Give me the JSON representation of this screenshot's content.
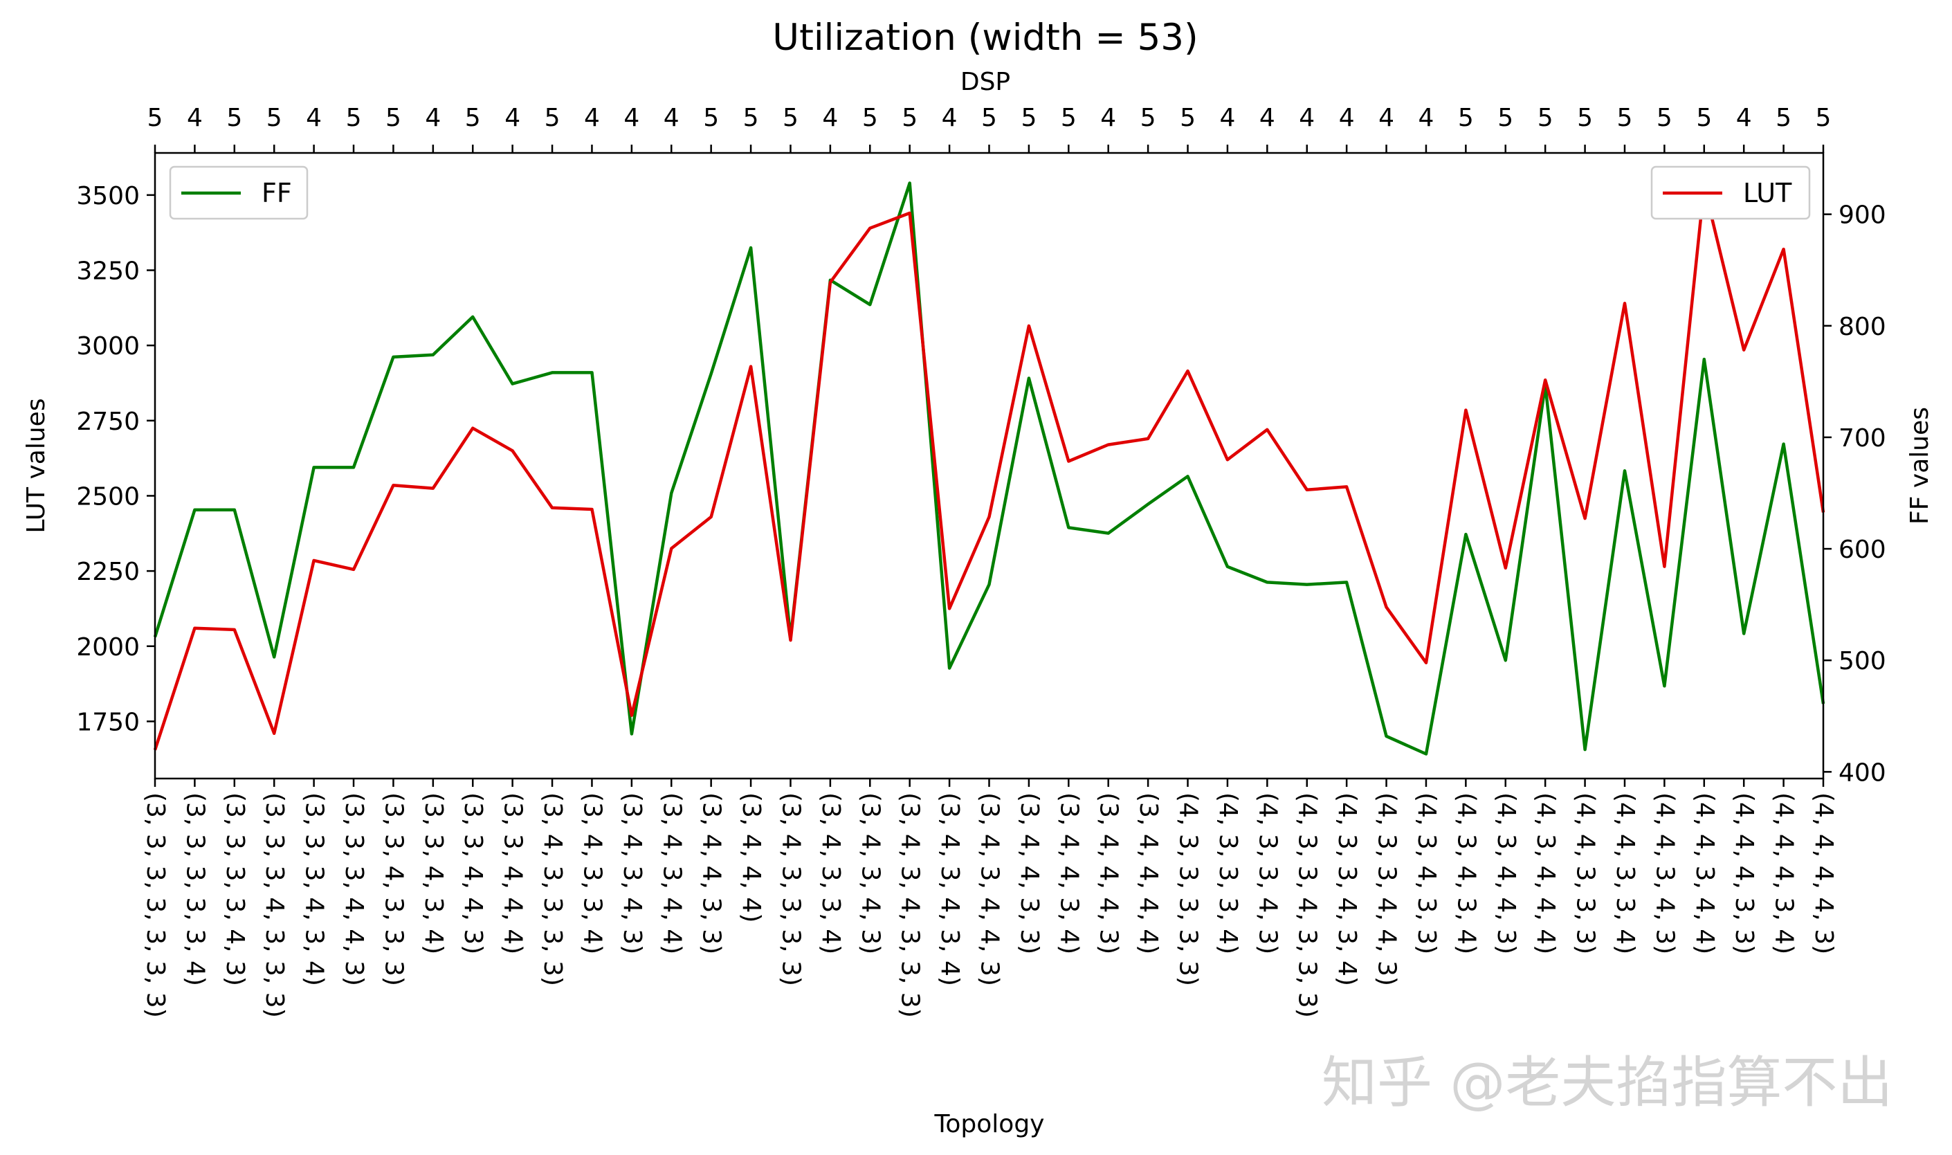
{
  "chart_data": {
    "type": "line",
    "title": "Utilization (width = 53)",
    "xlabel": "Topology",
    "ylabel_left": "LUT values",
    "ylabel_right": "FF values",
    "top_axis_label": "DSP",
    "ylim_left": [
      1560,
      3640
    ],
    "ylim_right": [
      394,
      955
    ],
    "yticks_left": [
      1750,
      2000,
      2250,
      2500,
      2750,
      3000,
      3250,
      3500
    ],
    "yticks_right": [
      400,
      500,
      600,
      700,
      800,
      900
    ],
    "grid": false,
    "categories": [
      "(3, 3, 3, 3, 3, 3, 3)",
      "(3, 3, 3, 3, 3, 4)",
      "(3, 3, 3, 3, 4, 3)",
      "(3, 3, 3, 4, 3, 3, 3)",
      "(3, 3, 3, 4, 3, 4)",
      "(3, 3, 3, 4, 4, 3)",
      "(3, 3, 4, 3, 3, 3)",
      "(3, 3, 4, 3, 4)",
      "(3, 3, 4, 4, 3)",
      "(3, 3, 4, 4, 4)",
      "(3, 4, 3, 3, 3, 3)",
      "(3, 4, 3, 3, 4)",
      "(3, 4, 3, 4, 3)",
      "(3, 4, 3, 4, 4)",
      "(3, 4, 4, 3, 3)",
      "(3, 4, 4, 4)",
      "(3, 4, 3, 3, 3, 3)",
      "(3, 4, 3, 3, 4)",
      "(3, 4, 3, 4, 3)",
      "(3, 4, 3, 4, 3, 3, 3)",
      "(3, 4, 3, 4, 3, 4)",
      "(3, 4, 3, 4, 4, 3)",
      "(3, 4, 4, 3, 3)",
      "(3, 4, 4, 3, 4)",
      "(3, 4, 4, 4, 3)",
      "(3, 4, 4, 4, 4)",
      "(4, 3, 3, 3, 3, 3)",
      "(4, 3, 3, 3, 4)",
      "(4, 3, 3, 4, 3)",
      "(4, 3, 3, 4, 3, 3, 3)",
      "(4, 3, 3, 4, 3, 4)",
      "(4, 3, 3, 4, 4, 3)",
      "(4, 3, 4, 3, 3)",
      "(4, 3, 4, 3, 4)",
      "(4, 3, 4, 4, 3)",
      "(4, 3, 4, 4, 4)",
      "(4, 4, 3, 3, 3)",
      "(4, 4, 3, 3, 4)",
      "(4, 4, 3, 4, 3)",
      "(4, 4, 3, 4, 4)",
      "(4, 4, 4, 3, 3)",
      "(4, 4, 4, 3, 4)",
      "(4, 4, 4, 4, 3)"
    ],
    "dsp_top": [
      5,
      4,
      5,
      5,
      4,
      5,
      5,
      4,
      5,
      4,
      5,
      4,
      4,
      4,
      5,
      5,
      5,
      4,
      5,
      5,
      4,
      5,
      5,
      5,
      4,
      5,
      5,
      4,
      4,
      4,
      4,
      4,
      4,
      5,
      5,
      5,
      5,
      5,
      5,
      5,
      4,
      5,
      5
    ],
    "series": [
      {
        "name": "FF",
        "axis": "right",
        "color": "#007f00",
        "legend_position": "upper-left",
        "values": [
          521,
          635,
          635,
          503,
          673,
          673,
          772,
          774,
          808,
          748,
          758,
          758,
          434,
          650,
          757,
          870,
          520,
          841,
          819,
          928,
          493,
          568,
          753,
          619,
          614,
          640,
          665,
          584,
          570,
          568,
          570,
          432,
          416,
          613,
          500,
          747,
          420,
          670,
          477,
          770,
          524,
          694,
          461
        ]
      },
      {
        "name": "LUT",
        "axis": "left",
        "color": "#e00000",
        "legend_position": "upper-right",
        "values": [
          1655,
          2060,
          2055,
          1710,
          2285,
          2255,
          2535,
          2525,
          2725,
          2650,
          2460,
          2455,
          1770,
          2325,
          2430,
          2930,
          2020,
          3210,
          3390,
          3440,
          2125,
          2430,
          3065,
          2615,
          2670,
          2690,
          2915,
          2620,
          2720,
          2520,
          2530,
          2130,
          1945,
          2785,
          2260,
          2885,
          2425,
          3140,
          2265,
          3530,
          2985,
          3320,
          2445
        ]
      }
    ]
  },
  "watermark": "知乎 @老夫掐指算不出"
}
